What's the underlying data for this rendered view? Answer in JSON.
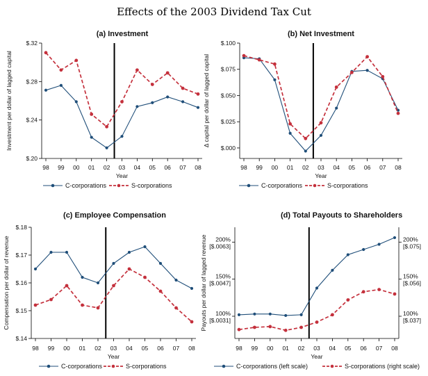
{
  "figure": {
    "title": "Effects of the 2003 Dividend Tax Cut"
  },
  "colors": {
    "c": "#1f4e79",
    "s": "#c4303c",
    "axis": "#000000",
    "vline": "#000000"
  },
  "chart_data": [
    {
      "type": "line",
      "title": "(a) Investment",
      "xlabel": "Year",
      "ylabel": "Investment per dollar of lagged capital",
      "categories": [
        "98",
        "99",
        "00",
        "01",
        "02",
        "03",
        "04",
        "05",
        "06",
        "07",
        "08"
      ],
      "ylim": [
        0.2,
        0.32
      ],
      "yticks": [
        0.2,
        0.24,
        0.28,
        0.32
      ],
      "ytick_labels": [
        "$.20",
        "$.24",
        "$.28",
        "$.32"
      ],
      "event_x": "02.5",
      "series": [
        {
          "name": "C-corporations",
          "style": "solid",
          "values": [
            0.271,
            0.276,
            0.259,
            0.222,
            0.211,
            0.223,
            0.254,
            0.258,
            0.264,
            0.259,
            0.253
          ]
        },
        {
          "name": "S-corporations",
          "style": "dashed",
          "values": [
            0.31,
            0.292,
            0.302,
            0.246,
            0.233,
            0.259,
            0.292,
            0.277,
            0.289,
            0.273,
            0.267
          ]
        }
      ],
      "legend": [
        "C-corporations",
        "S-corporations"
      ]
    },
    {
      "type": "line",
      "title": "(b) Net Investment",
      "xlabel": "Year",
      "ylabel": "Δ capital per dollar of lagged capital",
      "categories": [
        "98",
        "99",
        "00",
        "01",
        "02",
        "03",
        "04",
        "05",
        "06",
        "07",
        "08"
      ],
      "ylim": [
        -0.01,
        0.1
      ],
      "yticks": [
        0.0,
        0.025,
        0.05,
        0.075,
        0.1
      ],
      "ytick_labels": [
        "$.000",
        "$.025",
        "$.050",
        "$.075",
        "$.100"
      ],
      "event_x": "02.5",
      "series": [
        {
          "name": "C-corporations",
          "style": "solid",
          "values": [
            0.086,
            0.085,
            0.065,
            0.014,
            -0.003,
            0.012,
            0.038,
            0.073,
            0.074,
            0.066,
            0.036
          ]
        },
        {
          "name": "S-corporations",
          "style": "dashed",
          "values": [
            0.088,
            0.084,
            0.08,
            0.023,
            0.009,
            0.024,
            0.058,
            0.072,
            0.087,
            0.068,
            0.033
          ]
        }
      ],
      "legend": [
        "C-corporations",
        "S-corporations"
      ]
    },
    {
      "type": "line",
      "title": "(c) Employee Compensation",
      "xlabel": "Year",
      "ylabel": "Compensation per dollar of revenue",
      "categories": [
        "98",
        "99",
        "00",
        "01",
        "02",
        "03",
        "04",
        "05",
        "06",
        "07",
        "08"
      ],
      "ylim": [
        0.14,
        0.18
      ],
      "yticks": [
        0.14,
        0.15,
        0.16,
        0.17,
        0.18
      ],
      "ytick_labels": [
        "$.14",
        "$.15",
        "$.16",
        "$.17",
        "$.18"
      ],
      "event_x": "02.5",
      "series": [
        {
          "name": "C-corporations",
          "style": "solid",
          "values": [
            0.165,
            0.171,
            0.171,
            0.162,
            0.16,
            0.167,
            0.171,
            0.173,
            0.167,
            0.161,
            0.158
          ]
        },
        {
          "name": "S-corporations",
          "style": "dashed",
          "values": [
            0.152,
            0.154,
            0.159,
            0.152,
            0.151,
            0.159,
            0.165,
            0.162,
            0.157,
            0.151,
            0.146
          ]
        }
      ],
      "legend": [
        "C-corporations",
        "S-corporations"
      ]
    },
    {
      "type": "line",
      "title": "(d) Total Payouts to Shareholders",
      "xlabel": "Year",
      "ylabel": "Payouts per dollar of lagged revenue",
      "categories": [
        "98",
        "99",
        "00",
        "01",
        "02",
        "03",
        "04",
        "05",
        "06",
        "07",
        "08"
      ],
      "ylim_index": [
        70,
        220
      ],
      "left_ticks": [
        100,
        150,
        200
      ],
      "left_tick_labels": [
        [
          "100%",
          "[$.0031]"
        ],
        [
          "150%",
          "[$.0047]"
        ],
        [
          "200%",
          "[$.0063]"
        ]
      ],
      "right_ticks": [
        100,
        150,
        200
      ],
      "right_tick_labels": [
        [
          "100%",
          "[$.037]"
        ],
        [
          "150%",
          "[$.056]"
        ],
        [
          "200%",
          "[$.075]"
        ]
      ],
      "event_x": "02.5",
      "series": [
        {
          "name": "C-corporations (left scale)",
          "style": "solid",
          "values": [
            102,
            103,
            103,
            101,
            102,
            138,
            162,
            183,
            190,
            197,
            206
          ]
        },
        {
          "name": "S-corporations (right scale)",
          "style": "dashed",
          "values": [
            82,
            85,
            86,
            81,
            85,
            92,
            102,
            122,
            133,
            136,
            130
          ]
        }
      ],
      "legend": [
        "C-corporations (left scale)",
        "S-corporations (right scale)"
      ]
    }
  ]
}
